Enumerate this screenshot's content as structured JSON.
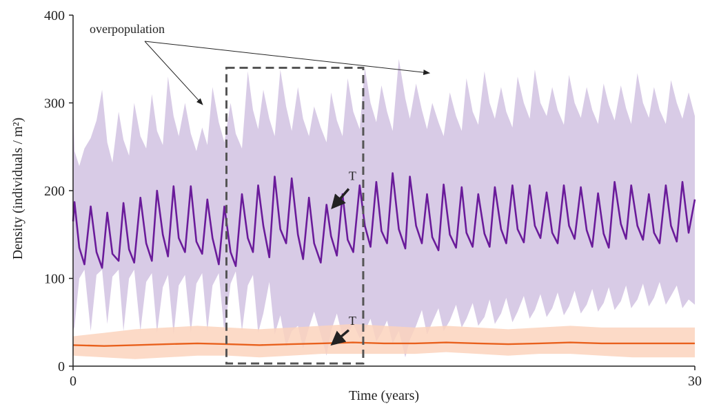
{
  "chart_data": {
    "type": "line",
    "xlabel": "Time (years)",
    "ylabel": "Density (individuals / m²)",
    "xlim": [
      0,
      30
    ],
    "ylim": [
      0,
      400
    ],
    "x_ticks": [
      "0",
      "30"
    ],
    "y_ticks": [
      "0",
      "100",
      "200",
      "300",
      "400"
    ],
    "grid": false,
    "legend": "none",
    "colors": {
      "purple_line": "#6a1b9a",
      "purple_band": "#d8cbe6",
      "orange_line": "#e8601c",
      "orange_band": "#fbd3bd",
      "highlight_box": "#555555"
    },
    "series": [
      {
        "x": [
          0,
          0.07,
          0.3,
          0.55,
          0.85,
          1.13,
          1.4,
          1.65,
          1.9,
          2.2,
          2.43,
          2.7,
          2.95,
          3.25,
          3.53,
          3.8,
          4.05,
          4.33,
          4.58,
          4.85,
          5.1,
          5.4,
          5.68,
          5.95,
          6.23,
          6.48,
          6.73,
          7.03,
          7.3,
          7.6,
          7.85,
          8.15,
          8.43,
          8.68,
          8.93,
          9.18,
          9.47,
          9.73,
          10.0,
          10.28,
          10.55,
          10.85,
          11.1,
          11.38,
          11.63,
          11.95,
          12.23,
          12.45,
          12.73,
          13.0,
          13.25,
          13.52,
          13.83,
          14.08,
          14.35,
          14.63,
          14.88,
          15.15,
          15.42,
          15.72,
          16.03,
          16.25,
          16.55,
          16.83,
          17.08,
          17.33,
          17.63,
          17.88,
          18.18,
          18.48,
          18.75,
          18.98,
          19.28,
          19.55,
          19.85,
          20.1,
          20.35,
          20.65,
          20.9,
          21.2,
          21.45,
          21.75,
          22.03,
          22.28,
          22.55,
          22.85,
          23.12,
          23.38,
          23.68,
          23.93,
          24.2,
          24.5,
          24.78,
          25.05,
          25.33,
          25.6,
          25.85,
          26.13,
          26.43,
          26.68,
          26.93,
          27.23,
          27.5,
          27.78,
          28.03,
          28.3,
          28.6,
          28.85,
          29.13,
          29.4,
          29.7,
          30.0
        ],
        "values": [
          165,
          187,
          135,
          116,
          182,
          130,
          112,
          175,
          128,
          120,
          186,
          133,
          118,
          192,
          140,
          120,
          200,
          150,
          125,
          205,
          146,
          130,
          205,
          142,
          128,
          190,
          146,
          116,
          182,
          130,
          114,
          196,
          146,
          130,
          206,
          160,
          124,
          216,
          156,
          140,
          214,
          150,
          122,
          192,
          140,
          118,
          184,
          148,
          126,
          196,
          144,
          130,
          206,
          160,
          136,
          210,
          154,
          140,
          220,
          156,
          134,
          216,
          160,
          140,
          196,
          147,
          132,
          207,
          150,
          135,
          204,
          152,
          136,
          196,
          151,
          136,
          204,
          156,
          140,
          206,
          156,
          141,
          206,
          160,
          146,
          198,
          152,
          140,
          206,
          160,
          145,
          204,
          155,
          136,
          197,
          151,
          135,
          210,
          162,
          145,
          206,
          160,
          144,
          196,
          152,
          140,
          206,
          160,
          142,
          210,
          152,
          190
        ]
      },
      {
        "x": [
          0,
          1.5,
          3,
          4.5,
          6,
          7.5,
          9,
          10.5,
          12,
          13.5,
          15,
          16.5,
          18,
          19.5,
          21,
          22.5,
          24,
          25.5,
          27,
          28.5,
          30
        ],
        "values": [
          24,
          23,
          24,
          25,
          26,
          25,
          24,
          25,
          26,
          27,
          26,
          26,
          27,
          26,
          25,
          26,
          27,
          26,
          26,
          26,
          26
        ]
      }
    ],
    "annotations": [
      {
        "text": "overpopulation"
      },
      {
        "text": "T"
      },
      {
        "text": "T"
      }
    ]
  }
}
